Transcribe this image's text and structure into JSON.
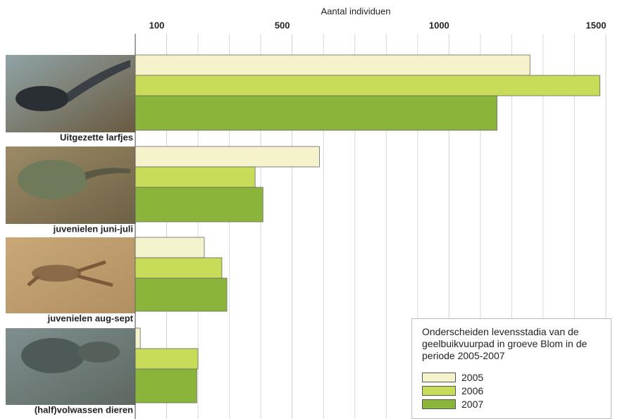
{
  "chart_data": {
    "type": "bar",
    "orientation": "horizontal",
    "title": "Aantal individuen",
    "categories": [
      "Uitgezette larfjes",
      "juvenielen juni-juli",
      "juvenielen aug-sept",
      "(half)volwassen dieren"
    ],
    "series": [
      {
        "name": "2005",
        "color": "#f5f3cc",
        "values": [
          1258,
          587,
          220,
          16
        ]
      },
      {
        "name": "2006",
        "color": "#c9dc5a",
        "values": [
          1481,
          382,
          276,
          200
        ]
      },
      {
        "name": "2007",
        "color": "#8ab43a",
        "values": [
          1153,
          407,
          292,
          196
        ]
      }
    ],
    "xlim": [
      0,
      1500
    ],
    "xticks": [
      100,
      500,
      1000,
      1500
    ],
    "xminor_ticks": [
      200,
      300,
      400,
      600,
      700,
      800,
      900,
      1100,
      1200,
      1300,
      1400
    ],
    "grid": true,
    "legend": {
      "title": "Onderscheiden levensstadia van de geelbuikvuurpad in groeve Blom in de periode 2005-2007",
      "position": "lower right"
    }
  }
}
